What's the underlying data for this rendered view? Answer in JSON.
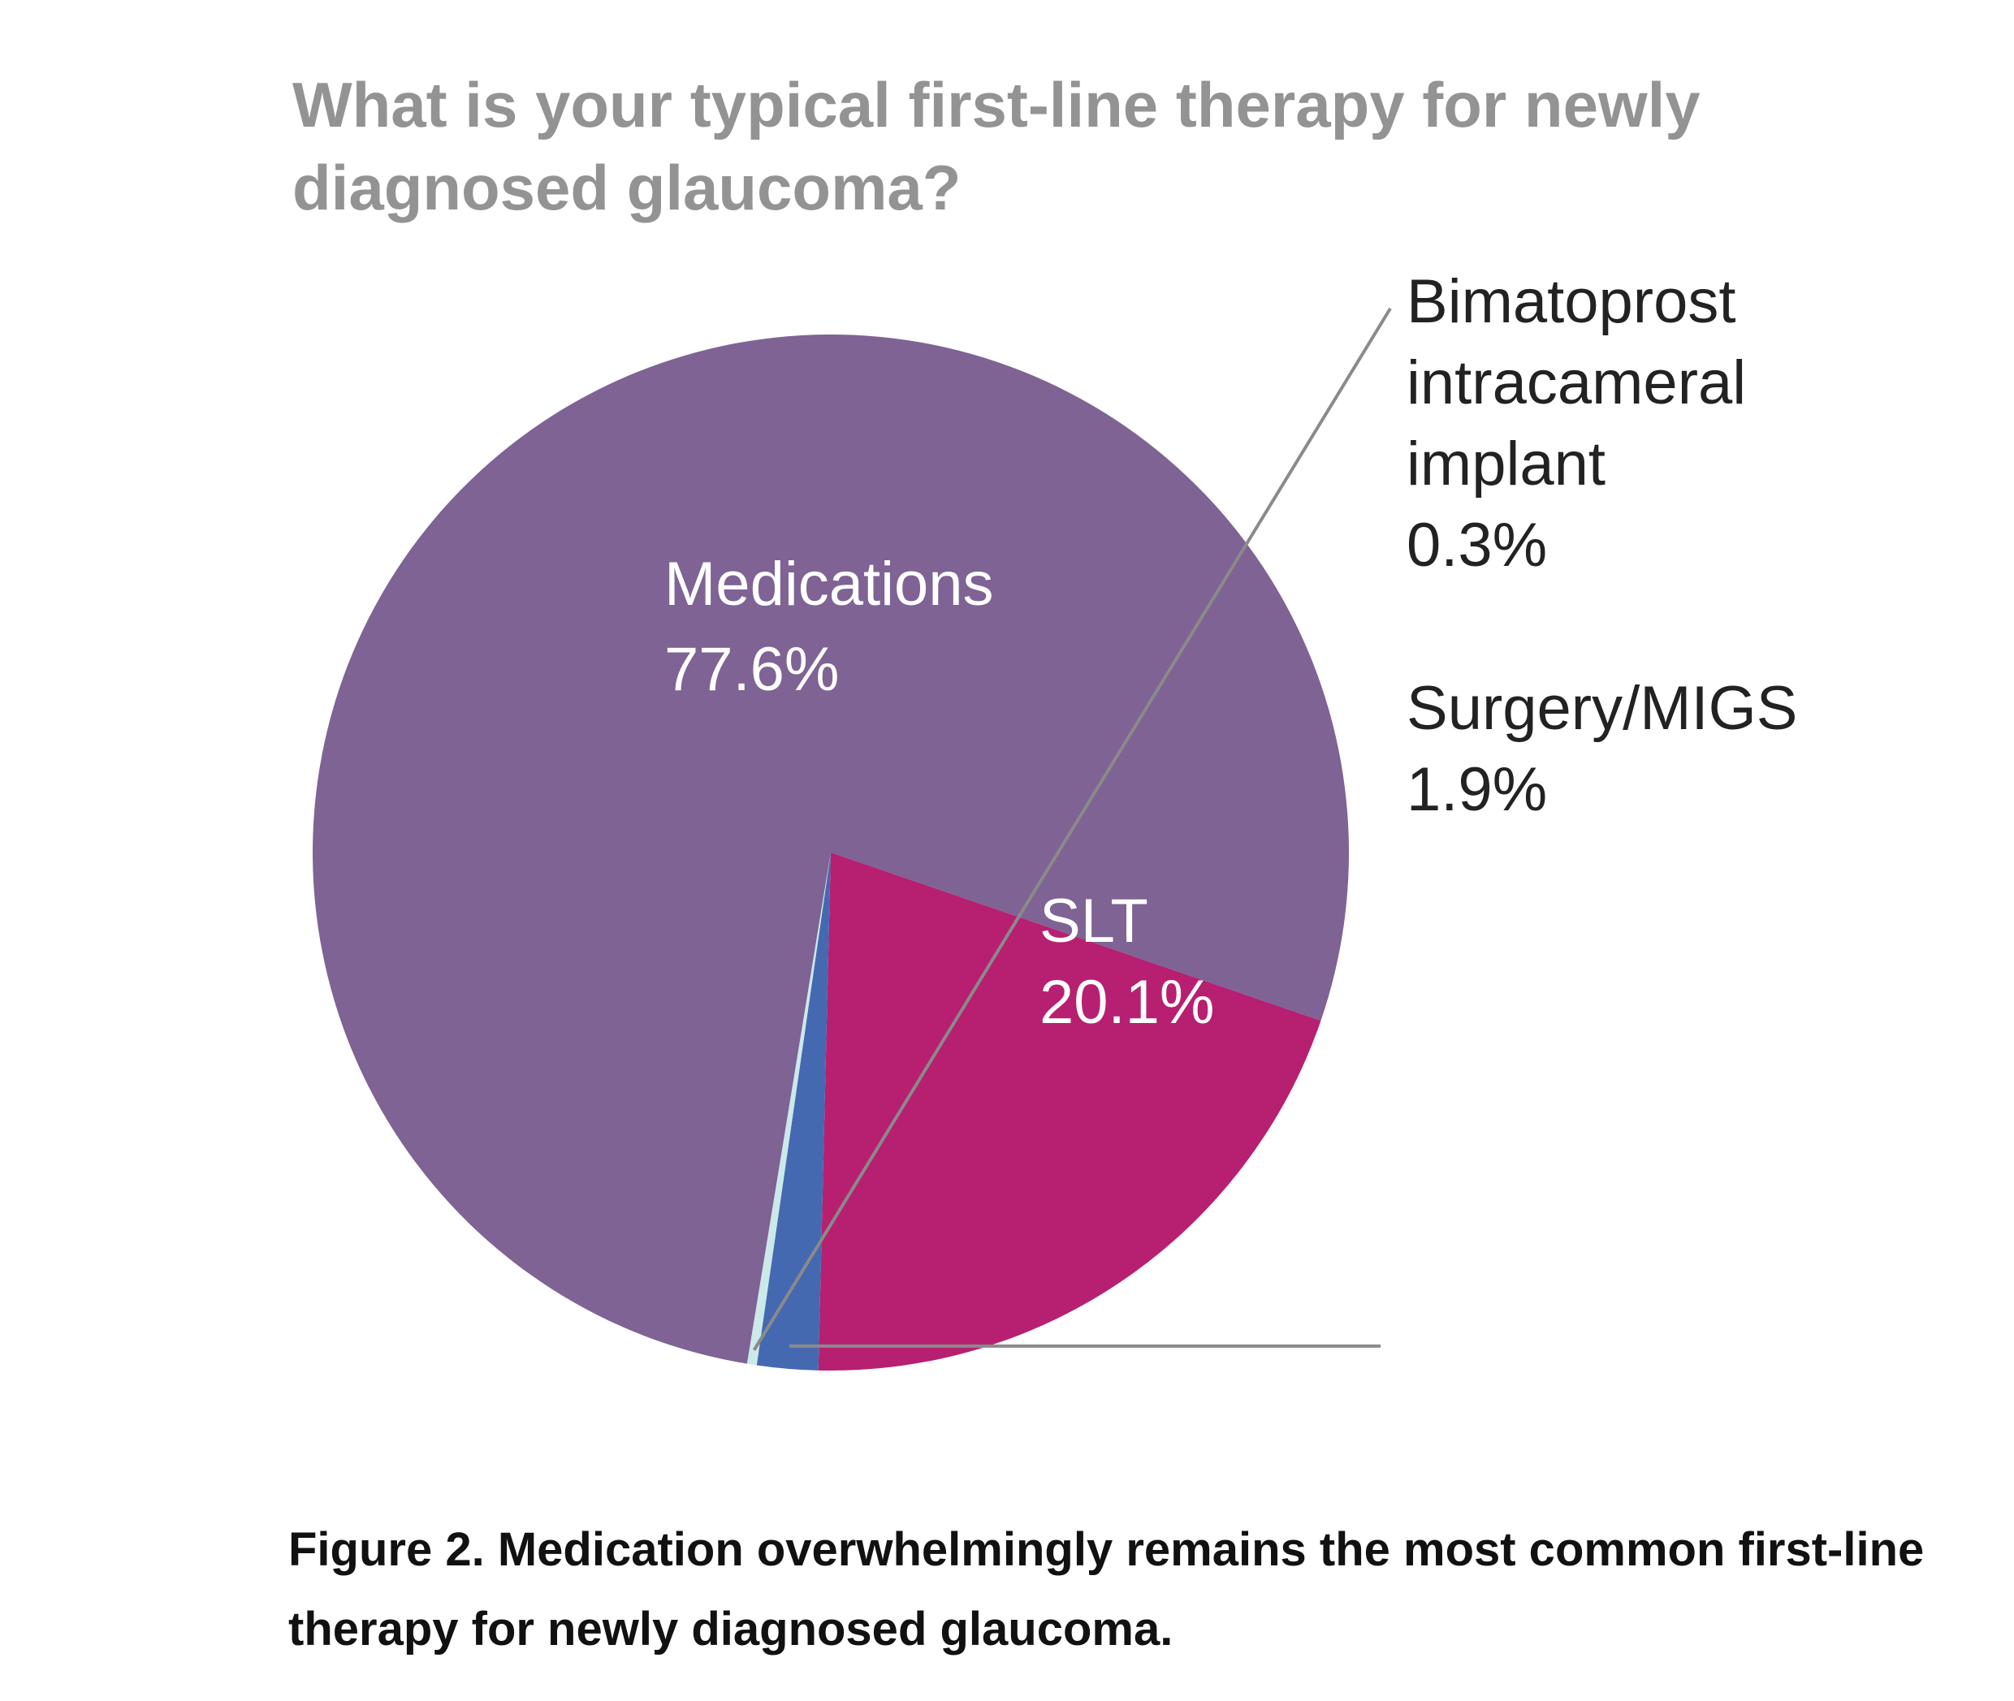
{
  "chart_data": {
    "type": "pie",
    "title": "What is your typical first-line therapy for newly diagnosed glaucoma?",
    "slices": [
      {
        "label": "Medications",
        "value": 77.6,
        "value_label": "77.6%",
        "color": "#7e6394"
      },
      {
        "label": "SLT",
        "value": 20.1,
        "value_label": "20.1%",
        "color": "#b71f71"
      },
      {
        "label": "Surgery/MIGS",
        "value": 1.9,
        "value_label": "1.9%",
        "color": "#4469b1"
      },
      {
        "label": "Bimatoprost intracameral implant",
        "value": 0.3,
        "value_label": "0.3%",
        "color": "#cce9ea"
      }
    ],
    "bimatoprost_label_lines": [
      "Bimatoprost",
      "intracameral",
      "implant"
    ],
    "leader_line_color": "#8a8a8a"
  },
  "caption": "Figure 2. Medication overwhelmingly remains the most common first-line therapy for newly diagnosed glaucoma."
}
